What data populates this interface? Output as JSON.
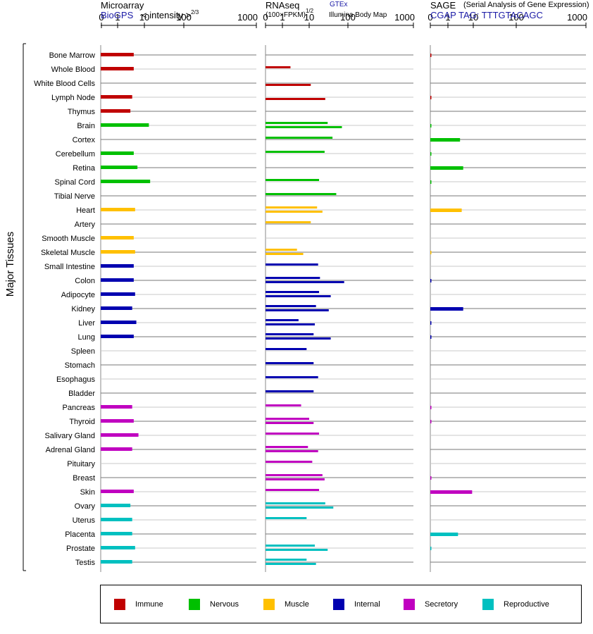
{
  "headers": {
    "microarray": {
      "title": "Microarray",
      "source": "BioGPS",
      "unit": "< intensity >",
      "exponent": "2/3"
    },
    "rnaseq": {
      "title": "RNAseq",
      "unit": "(100×FPKM)",
      "exponent": "1/2",
      "source1": "GTEx",
      "source2": "Illumina Body Map"
    },
    "sage": {
      "title": "SAGE",
      "subtitle": "(Serial Analysis of Gene Expression)",
      "tag": "CGAP TAG: TTTGTACAGC"
    }
  },
  "axis_ticks": [
    "0",
    "1",
    "10",
    "100",
    "1000"
  ],
  "y_axis_label": "Major Tissues",
  "legend": [
    {
      "label": "Immune",
      "color": "#c00000"
    },
    {
      "label": "Nervous",
      "color": "#00c000"
    },
    {
      "label": "Muscle",
      "color": "#ffc000"
    },
    {
      "label": "Internal",
      "color": "#0000b0"
    },
    {
      "label": "Secretory",
      "color": "#c000c0"
    },
    {
      "label": "Reproductive",
      "color": "#00c0c0"
    }
  ],
  "chart_data": {
    "type": "bar",
    "scale": "power-transformed (log-like)",
    "xlim": [
      0,
      1000
    ],
    "groups_colors": {
      "Immune": "#c00000",
      "Nervous": "#00c000",
      "Muscle": "#ffc000",
      "Internal": "#0000b0",
      "Secretory": "#c000c0",
      "Reproductive": "#00c0c0"
    },
    "tissues": [
      {
        "name": "Bone Marrow",
        "group": "Immune",
        "microarray": 4,
        "gtex": null,
        "ibm": null,
        "sage": 0.05
      },
      {
        "name": "Whole Blood",
        "group": "Immune",
        "microarray": 4,
        "gtex": 2,
        "ibm": null,
        "sage": null
      },
      {
        "name": "White Blood Cells",
        "group": "Immune",
        "microarray": null,
        "gtex": null,
        "ibm": 11,
        "sage": null
      },
      {
        "name": "Lymph Node",
        "group": "Immune",
        "microarray": 3.5,
        "gtex": null,
        "ibm": 26,
        "sage": 0.05
      },
      {
        "name": "Thymus",
        "group": "Immune",
        "microarray": 3,
        "gtex": null,
        "ibm": null,
        "sage": null
      },
      {
        "name": "Brain",
        "group": "Nervous",
        "microarray": 13,
        "gtex": 30,
        "ibm": 70,
        "sage": 0.05
      },
      {
        "name": "Cortex",
        "group": "Nervous",
        "microarray": null,
        "gtex": 40,
        "ibm": null,
        "sage": 3
      },
      {
        "name": "Cerebellum",
        "group": "Nervous",
        "microarray": 4,
        "gtex": 25,
        "ibm": null,
        "sage": 0.05
      },
      {
        "name": "Retina",
        "group": "Nervous",
        "microarray": 5.5,
        "gtex": null,
        "ibm": null,
        "sage": 4
      },
      {
        "name": "Spinal Cord",
        "group": "Nervous",
        "microarray": 14,
        "gtex": 18,
        "ibm": null,
        "sage": 0.05
      },
      {
        "name": "Tibial Nerve",
        "group": "Nervous",
        "microarray": null,
        "gtex": 50,
        "ibm": null,
        "sage": null
      },
      {
        "name": "Heart",
        "group": "Muscle",
        "microarray": 4.5,
        "gtex": 16,
        "ibm": 22,
        "sage": 3.5
      },
      {
        "name": "Artery",
        "group": "Muscle",
        "microarray": null,
        "gtex": 11,
        "ibm": null,
        "sage": null
      },
      {
        "name": "Smooth Muscle",
        "group": "Muscle",
        "microarray": 4,
        "gtex": null,
        "ibm": null,
        "sage": null
      },
      {
        "name": "Skeletal Muscle",
        "group": "Muscle",
        "microarray": 4.5,
        "gtex": 3.5,
        "ibm": 6,
        "sage": 0.05
      },
      {
        "name": "Small Intestine",
        "group": "Internal",
        "microarray": 4,
        "gtex": 17,
        "ibm": null,
        "sage": null
      },
      {
        "name": "Colon",
        "group": "Internal",
        "microarray": 4,
        "gtex": 19,
        "ibm": 80,
        "sage": 0.05
      },
      {
        "name": "Adipocyte",
        "group": "Internal",
        "microarray": 4.5,
        "gtex": 18,
        "ibm": 36,
        "sage": null
      },
      {
        "name": "Kidney",
        "group": "Internal",
        "microarray": 3.5,
        "gtex": 15,
        "ibm": 32,
        "sage": 4
      },
      {
        "name": "Liver",
        "group": "Internal",
        "microarray": 5,
        "gtex": 4,
        "ibm": 14,
        "sage": 0.05
      },
      {
        "name": "Lung",
        "group": "Internal",
        "microarray": 4,
        "gtex": 13,
        "ibm": 36,
        "sage": 0.05
      },
      {
        "name": "Spleen",
        "group": "Internal",
        "microarray": null,
        "gtex": 8,
        "ibm": null,
        "sage": null
      },
      {
        "name": "Stomach",
        "group": "Internal",
        "microarray": null,
        "gtex": 13,
        "ibm": null,
        "sage": null
      },
      {
        "name": "Esophagus",
        "group": "Internal",
        "microarray": null,
        "gtex": 17,
        "ibm": null,
        "sage": null
      },
      {
        "name": "Bladder",
        "group": "Internal",
        "microarray": null,
        "gtex": 13,
        "ibm": null,
        "sage": null
      },
      {
        "name": "Pancreas",
        "group": "Secretory",
        "microarray": 3.5,
        "gtex": 5,
        "ibm": null,
        "sage": 0.05
      },
      {
        "name": "Thyroid",
        "group": "Secretory",
        "microarray": 4,
        "gtex": 10,
        "ibm": 13,
        "sage": 0.05
      },
      {
        "name": "Salivary Gland",
        "group": "Secretory",
        "microarray": 6,
        "gtex": 18,
        "ibm": null,
        "sage": null
      },
      {
        "name": "Adrenal Gland",
        "group": "Secretory",
        "microarray": 3.5,
        "gtex": 9,
        "ibm": 17,
        "sage": null
      },
      {
        "name": "Pituitary",
        "group": "Secretory",
        "microarray": null,
        "gtex": 12,
        "ibm": null,
        "sage": null
      },
      {
        "name": "Breast",
        "group": "Secretory",
        "microarray": null,
        "gtex": 22,
        "ibm": 25,
        "sage": 0.05
      },
      {
        "name": "Skin",
        "group": "Secretory",
        "microarray": 4,
        "gtex": 18,
        "ibm": null,
        "sage": 9
      },
      {
        "name": "Ovary",
        "group": "Reproductive",
        "microarray": 3,
        "gtex": 26,
        "ibm": 42,
        "sage": null
      },
      {
        "name": "Uterus",
        "group": "Reproductive",
        "microarray": 3.5,
        "gtex": 8,
        "ibm": null,
        "sage": null
      },
      {
        "name": "Placenta",
        "group": "Reproductive",
        "microarray": 3.5,
        "gtex": null,
        "ibm": null,
        "sage": 2.5
      },
      {
        "name": "Prostate",
        "group": "Reproductive",
        "microarray": 4.5,
        "gtex": 14,
        "ibm": 30,
        "sage": 0.05
      },
      {
        "name": "Testis",
        "group": "Reproductive",
        "microarray": 3.5,
        "gtex": 8,
        "ibm": 15,
        "sage": null
      }
    ]
  }
}
